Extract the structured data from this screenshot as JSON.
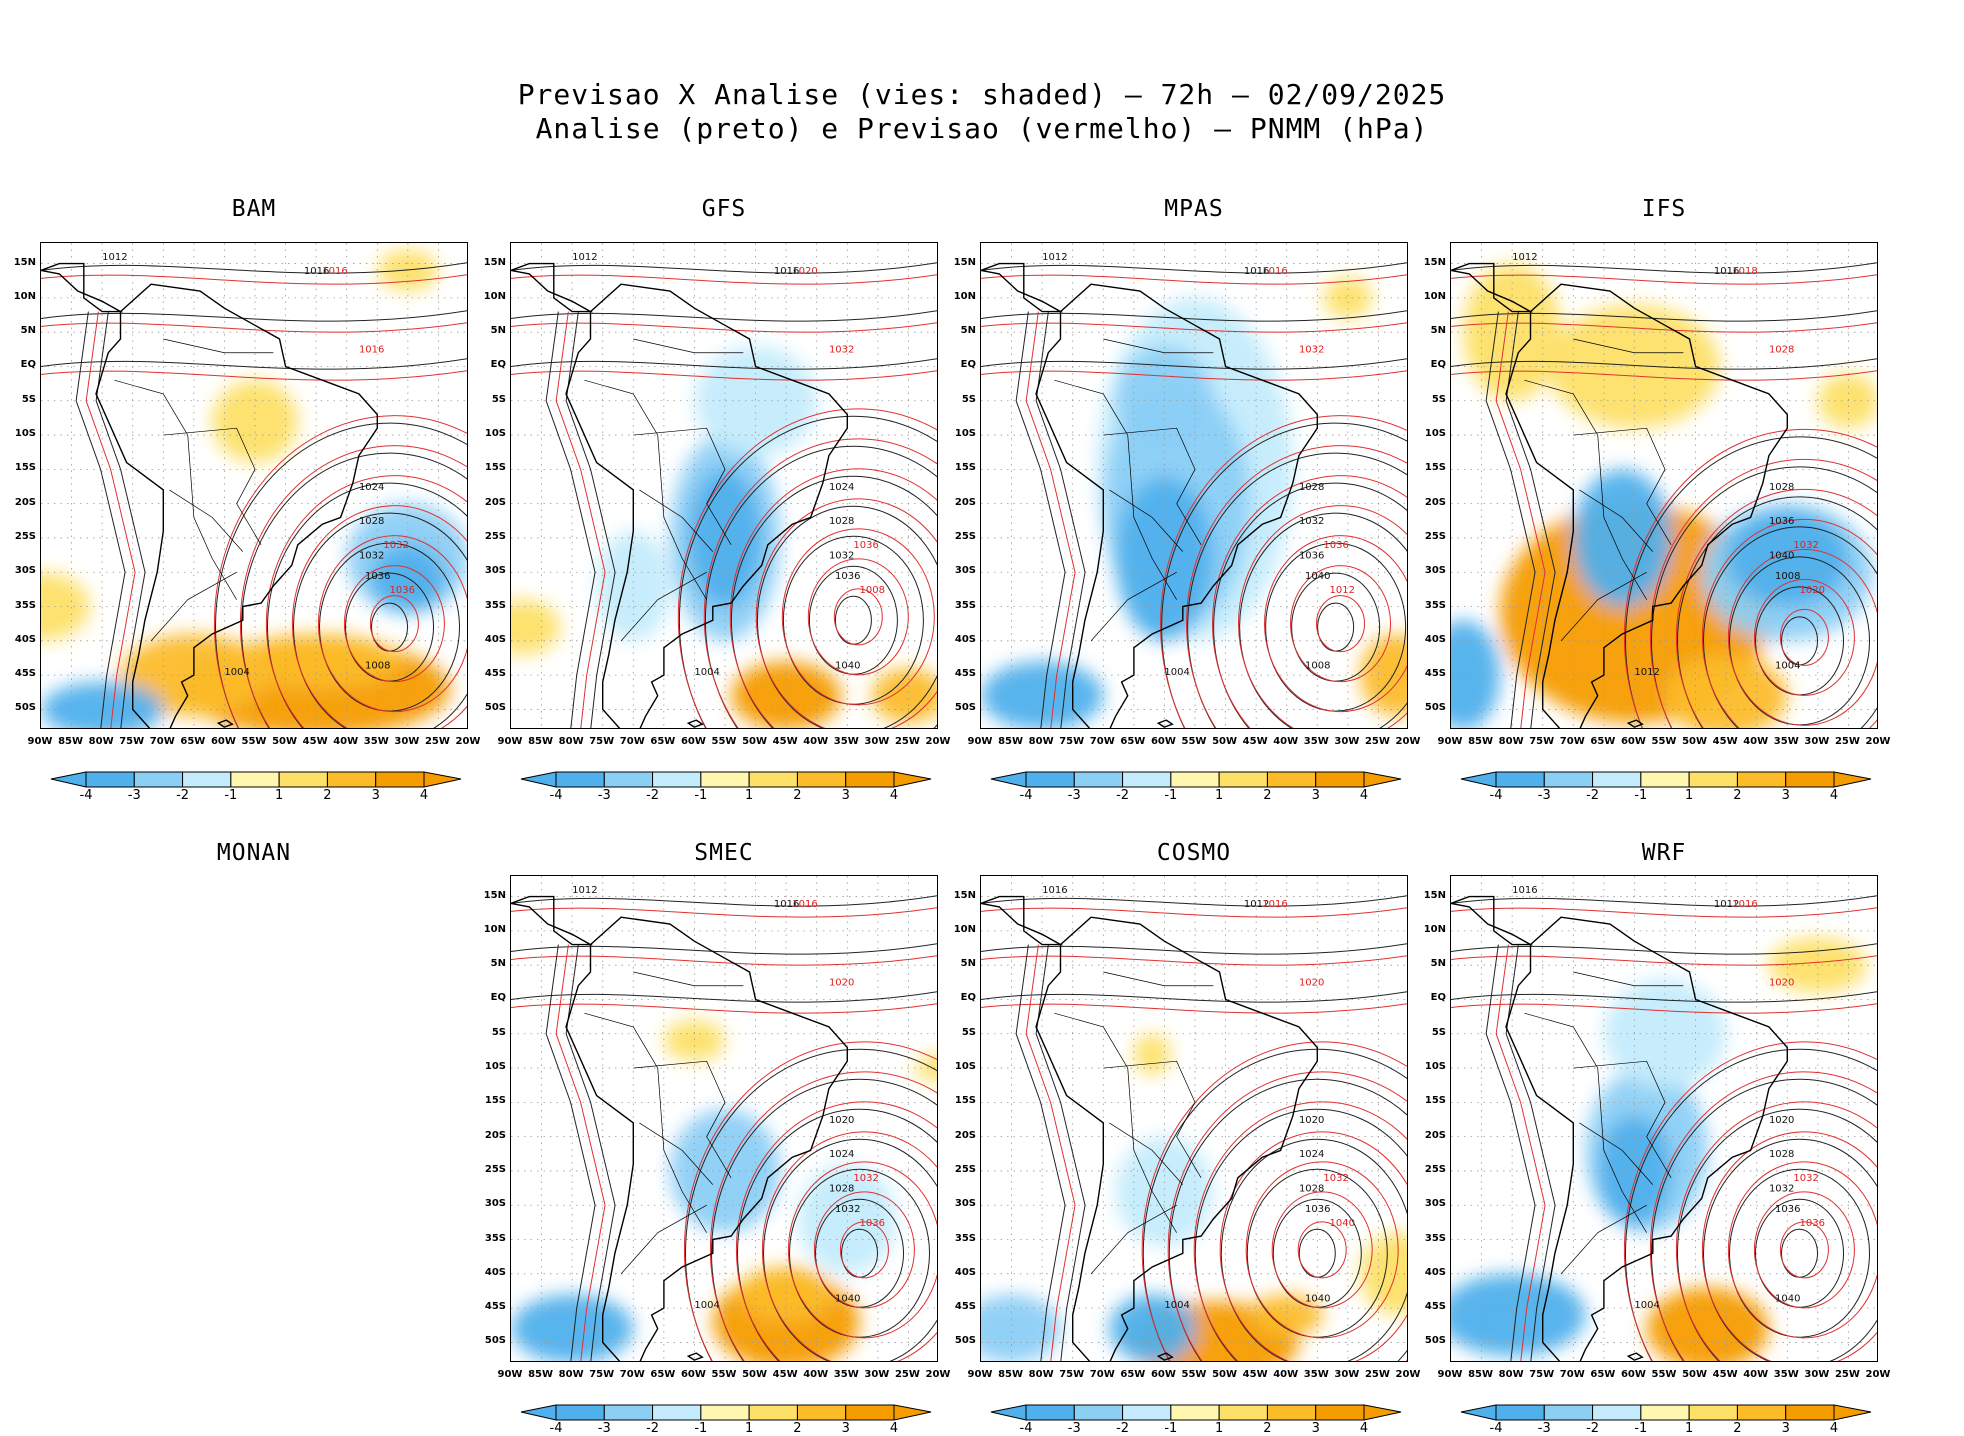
{
  "header": {
    "line1": "Previsao X Analise (vies: shaded) – 72h – 02/09/2025",
    "line2": "Analise (preto) e Previsao (vermelho) – PNMM (hPa)"
  },
  "lat_labels": [
    "15N",
    "10N",
    "5N",
    "EQ",
    "5S",
    "10S",
    "15S",
    "20S",
    "25S",
    "30S",
    "35S",
    "40S",
    "45S",
    "50S"
  ],
  "lon_labels": [
    "90W",
    "85W",
    "80W",
    "75W",
    "70W",
    "65W",
    "60W",
    "55W",
    "50W",
    "45W",
    "40W",
    "35W",
    "30W",
    "25W",
    "20W"
  ],
  "colorbar": {
    "labels": [
      "-4",
      "-3",
      "-2",
      "-1",
      "1",
      "2",
      "3",
      "4"
    ],
    "colors": [
      "#4fb0ec",
      "#8ccff5",
      "#c4ecfc",
      "#ffffff",
      "#fff6b0",
      "#fde067",
      "#fcbc2a",
      "#f59c00"
    ]
  },
  "panels": [
    {
      "name": "BAM",
      "has_map": true,
      "black_labels": [
        {
          "t": "1012"
        },
        {
          "t": "1016"
        },
        {
          "t": "1024"
        },
        {
          "t": "1028"
        },
        {
          "t": "1032"
        },
        {
          "t": "1036"
        },
        {
          "t": "1008"
        },
        {
          "t": "1004"
        }
      ],
      "red_labels": [
        {
          "t": "1016"
        },
        {
          "t": "1016"
        },
        {
          "t": "1032"
        },
        {
          "t": "1036"
        }
      ]
    },
    {
      "name": "GFS",
      "has_map": true,
      "black_labels": [
        {
          "t": "1012"
        },
        {
          "t": "1016"
        },
        {
          "t": "1024"
        },
        {
          "t": "1028"
        },
        {
          "t": "1032"
        },
        {
          "t": "1036"
        },
        {
          "t": "1040"
        },
        {
          "t": "1004"
        }
      ],
      "red_labels": [
        {
          "t": "1020"
        },
        {
          "t": "1032"
        },
        {
          "t": "1036"
        },
        {
          "t": "1008"
        }
      ]
    },
    {
      "name": "MPAS",
      "has_map": true,
      "black_labels": [
        {
          "t": "1012"
        },
        {
          "t": "1016"
        },
        {
          "t": "1028"
        },
        {
          "t": "1032"
        },
        {
          "t": "1036"
        },
        {
          "t": "1040"
        },
        {
          "t": "1008"
        },
        {
          "t": "1004"
        }
      ],
      "red_labels": [
        {
          "t": "1016"
        },
        {
          "t": "1032"
        },
        {
          "t": "1036"
        },
        {
          "t": "1012"
        }
      ]
    },
    {
      "name": "IFS",
      "has_map": true,
      "black_labels": [
        {
          "t": "1012"
        },
        {
          "t": "1016"
        },
        {
          "t": "1028"
        },
        {
          "t": "1036"
        },
        {
          "t": "1040"
        },
        {
          "t": "1008"
        },
        {
          "t": "1004"
        },
        {
          "t": "1012"
        }
      ],
      "red_labels": [
        {
          "t": "1018"
        },
        {
          "t": "1028"
        },
        {
          "t": "1032"
        },
        {
          "t": "1020"
        }
      ]
    },
    {
      "name": "MONAN",
      "has_map": false
    },
    {
      "name": "SMEC",
      "has_map": true,
      "black_labels": [
        {
          "t": "1012"
        },
        {
          "t": "1016"
        },
        {
          "t": "1020"
        },
        {
          "t": "1024"
        },
        {
          "t": "1028"
        },
        {
          "t": "1032"
        },
        {
          "t": "1040"
        },
        {
          "t": "1004"
        }
      ],
      "red_labels": [
        {
          "t": "1016"
        },
        {
          "t": "1020"
        },
        {
          "t": "1032"
        },
        {
          "t": "1036"
        }
      ]
    },
    {
      "name": "COSMO",
      "has_map": true,
      "black_labels": [
        {
          "t": "1016"
        },
        {
          "t": "1012"
        },
        {
          "t": "1020"
        },
        {
          "t": "1024"
        },
        {
          "t": "1028"
        },
        {
          "t": "1036"
        },
        {
          "t": "1040"
        },
        {
          "t": "1004"
        }
      ],
      "red_labels": [
        {
          "t": "1016"
        },
        {
          "t": "1020"
        },
        {
          "t": "1032"
        },
        {
          "t": "1040"
        }
      ]
    },
    {
      "name": "WRF",
      "has_map": true,
      "black_labels": [
        {
          "t": "1016"
        },
        {
          "t": "1012"
        },
        {
          "t": "1020"
        },
        {
          "t": "1028"
        },
        {
          "t": "1032"
        },
        {
          "t": "1036"
        },
        {
          "t": "1040"
        },
        {
          "t": "1004"
        }
      ],
      "red_labels": [
        {
          "t": "1016"
        },
        {
          "t": "1020"
        },
        {
          "t": "1032"
        },
        {
          "t": "1036"
        }
      ]
    }
  ]
}
